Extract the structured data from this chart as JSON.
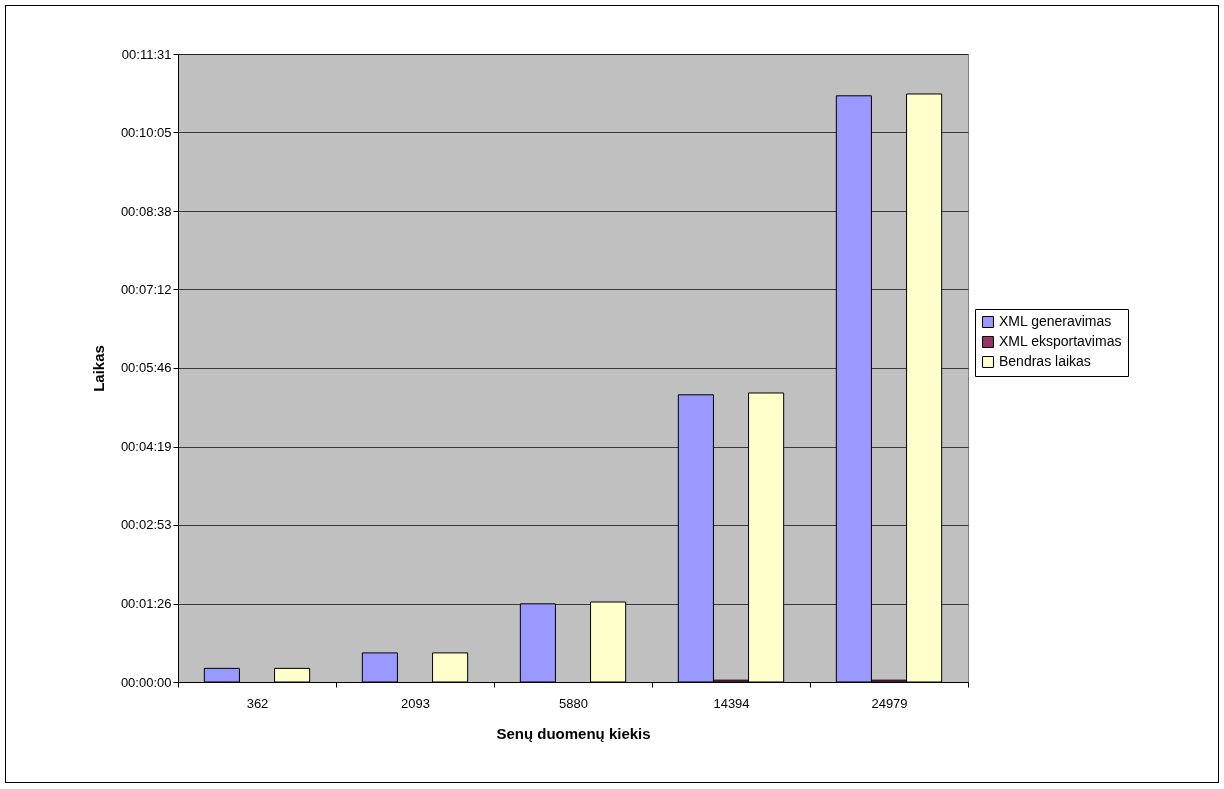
{
  "chart_data": {
    "type": "bar",
    "xlabel": "Senų duomenų kiekis",
    "ylabel": "Laikas",
    "categories": [
      "362",
      "2093",
      "5880",
      "14394",
      "24979"
    ],
    "series": [
      {
        "name": "XML generavimas",
        "color": "#9999ff",
        "values": [
          15,
          32,
          86,
          316,
          645
        ]
      },
      {
        "name": "XML eksportavimas",
        "color": "#993366",
        "values": [
          0,
          0,
          0,
          2,
          2
        ]
      },
      {
        "name": "Bendras laikas",
        "color": "#ffffcc",
        "values": [
          15,
          32,
          88,
          318,
          647
        ]
      }
    ],
    "ylim": [
      0,
      691
    ],
    "yticks": [
      {
        "value": 0,
        "label": "00:00:00"
      },
      {
        "value": 86,
        "label": "00:01:26"
      },
      {
        "value": 173,
        "label": "00:02:53"
      },
      {
        "value": 259,
        "label": "00:04:19"
      },
      {
        "value": 346,
        "label": "00:05:46"
      },
      {
        "value": 432,
        "label": "00:07:12"
      },
      {
        "value": 518,
        "label": "00:08:38"
      },
      {
        "value": 605,
        "label": "00:10:05"
      },
      {
        "value": 691,
        "label": "00:11:31"
      }
    ],
    "grid": "y",
    "legend": "right"
  }
}
